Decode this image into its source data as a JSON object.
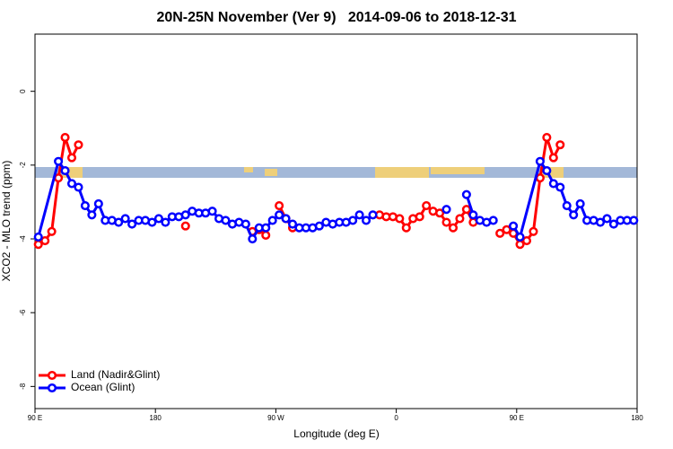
{
  "chart_data": {
    "type": "line",
    "title": "20N-25N November (Ver 9)   2014-09-06 to 2018-12-31",
    "x_label": "Longitude (deg E)",
    "y_label": "XCO2 - MLO trend (ppm)",
    "xlim": [
      90,
      540
    ],
    "ylim": [
      -8.6,
      1.55
    ],
    "xticks": [
      {
        "value": 90,
        "label": "90 E"
      },
      {
        "value": 180,
        "label": "180"
      },
      {
        "value": 270,
        "label": "90 W"
      },
      {
        "value": 360,
        "label": "0"
      },
      {
        "value": 450,
        "label": "90 E"
      },
      {
        "value": 540,
        "label": "180"
      }
    ],
    "yticks": [
      0,
      -2,
      -4,
      -6,
      -8
    ],
    "legend": "bottom-left",
    "series": [
      {
        "name": "Land (Nadir&Glint)",
        "color": "#ff0000",
        "x": [
          92.5,
          97.5,
          102.5,
          107.5,
          112.5,
          117.5,
          122.5,
          null,
          202.5,
          null,
          252.5,
          257.5,
          262.5,
          null,
          272.5,
          277.5,
          282.5,
          null,
          347.5,
          352.5,
          357.5,
          362.5,
          367.5,
          372.5,
          377.5,
          382.5,
          387.5,
          392.5,
          397.5,
          402.5,
          407.5,
          412.5,
          417.5,
          null,
          437.5,
          442.5,
          447.5,
          452.5,
          457.5,
          462.5,
          467.5,
          472.5,
          477.5,
          482.5
        ],
        "values": [
          -4.15,
          -4.05,
          -3.8,
          -2.35,
          -1.25,
          -1.8,
          -1.45,
          null,
          -3.65,
          null,
          -3.8,
          -3.75,
          -3.9,
          null,
          -3.1,
          -3.45,
          -3.7,
          null,
          -3.35,
          -3.4,
          -3.4,
          -3.45,
          -3.7,
          -3.45,
          -3.4,
          -3.1,
          -3.25,
          -3.3,
          -3.55,
          -3.7,
          -3.45,
          -3.2,
          -3.55,
          null,
          -3.85,
          -3.75,
          -3.85,
          -4.15,
          -4.05,
          -3.8,
          -2.35,
          -1.25,
          -1.8,
          -1.45
        ]
      },
      {
        "name": "Ocean (Glint)",
        "color": "#0000ff",
        "x": [
          92.5,
          107.5,
          112.5,
          117.5,
          122.5,
          127.5,
          132.5,
          137.5,
          142.5,
          147.5,
          152.5,
          157.5,
          162.5,
          167.5,
          172.5,
          177.5,
          182.5,
          187.5,
          192.5,
          197.5,
          202.5,
          207.5,
          212.5,
          217.5,
          222.5,
          227.5,
          232.5,
          237.5,
          242.5,
          247.5,
          252.5,
          257.5,
          262.5,
          267.5,
          272.5,
          277.5,
          282.5,
          287.5,
          292.5,
          297.5,
          302.5,
          307.5,
          312.5,
          317.5,
          322.5,
          327.5,
          332.5,
          337.5,
          342.5,
          null,
          397.5,
          null,
          412.5,
          417.5,
          422.5,
          427.5,
          432.5,
          null,
          447.5,
          452.5,
          467.5,
          472.5,
          477.5,
          482.5,
          487.5,
          492.5,
          497.5,
          502.5,
          507.5,
          512.5,
          517.5,
          522.5,
          527.5,
          532.5,
          537.5
        ],
        "values": [
          -3.95,
          -1.9,
          -2.15,
          -2.5,
          -2.6,
          -3.1,
          -3.35,
          -3.05,
          -3.5,
          -3.5,
          -3.55,
          -3.45,
          -3.6,
          -3.5,
          -3.5,
          -3.55,
          -3.45,
          -3.55,
          -3.4,
          -3.4,
          -3.35,
          -3.25,
          -3.3,
          -3.3,
          -3.25,
          -3.45,
          -3.5,
          -3.6,
          -3.55,
          -3.6,
          -4.0,
          -3.7,
          -3.7,
          -3.5,
          -3.35,
          -3.45,
          -3.6,
          -3.7,
          -3.7,
          -3.7,
          -3.65,
          -3.55,
          -3.6,
          -3.55,
          -3.55,
          -3.5,
          -3.35,
          -3.5,
          -3.35,
          null,
          -3.2,
          null,
          -2.8,
          -3.35,
          -3.5,
          -3.55,
          -3.5,
          null,
          -3.65,
          -3.95,
          -1.9,
          -2.15,
          -2.5,
          -2.6,
          -3.1,
          -3.35,
          -3.05,
          -3.5,
          -3.5,
          -3.55,
          -3.45,
          -3.6,
          -3.5,
          -3.5,
          -3.5
        ]
      }
    ]
  }
}
